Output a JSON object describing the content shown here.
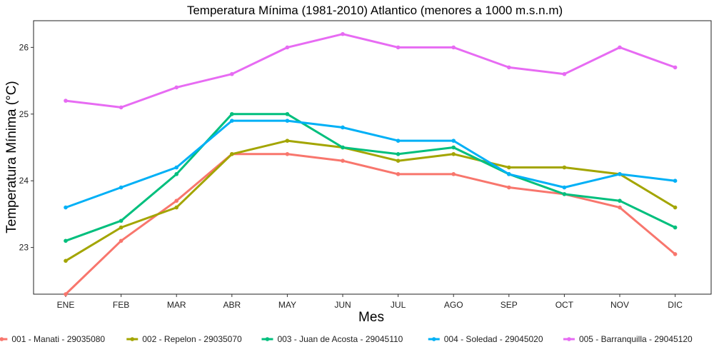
{
  "chart_data": {
    "type": "line",
    "title": "Temperatura Mínima (1981-2010) Atlantico (menores a 1000 m.s.n.m)",
    "xlabel": "Mes",
    "ylabel": "Temperatura Mínima (°C)",
    "categories": [
      "ENE",
      "FEB",
      "MAR",
      "ABR",
      "MAY",
      "JUN",
      "JUL",
      "AGO",
      "SEP",
      "OCT",
      "NOV",
      "DIC"
    ],
    "ylim": [
      22.3,
      26.4
    ],
    "yticks": [
      23,
      24,
      25,
      26
    ],
    "grid": false,
    "legend_position": "bottom",
    "series": [
      {
        "name": "001 - Manati - 29035080",
        "color": "#F8766D",
        "values": [
          22.3,
          23.1,
          23.7,
          24.4,
          24.4,
          24.3,
          24.1,
          24.1,
          23.9,
          23.8,
          23.6,
          22.9
        ]
      },
      {
        "name": "002 - Repelon - 29035070",
        "color": "#A3A500",
        "values": [
          22.8,
          23.3,
          23.6,
          24.4,
          24.6,
          24.5,
          24.3,
          24.4,
          24.2,
          24.2,
          24.1,
          23.6
        ]
      },
      {
        "name": "003 - Juan de Acosta - 29045110",
        "color": "#00BF7D",
        "values": [
          23.1,
          23.4,
          24.1,
          25.0,
          25.0,
          24.5,
          24.4,
          24.5,
          24.1,
          23.8,
          23.7,
          23.3
        ]
      },
      {
        "name": "004 - Soledad - 29045020",
        "color": "#00B0F6",
        "values": [
          23.6,
          23.9,
          24.2,
          24.9,
          24.9,
          24.8,
          24.6,
          24.6,
          24.1,
          23.9,
          24.1,
          24.0
        ]
      },
      {
        "name": "005 - Barranquilla - 29045120",
        "color": "#E76BF3",
        "values": [
          25.2,
          25.1,
          25.4,
          25.6,
          26.0,
          26.2,
          26.0,
          26.0,
          25.7,
          25.6,
          26.0,
          25.7
        ]
      }
    ]
  }
}
